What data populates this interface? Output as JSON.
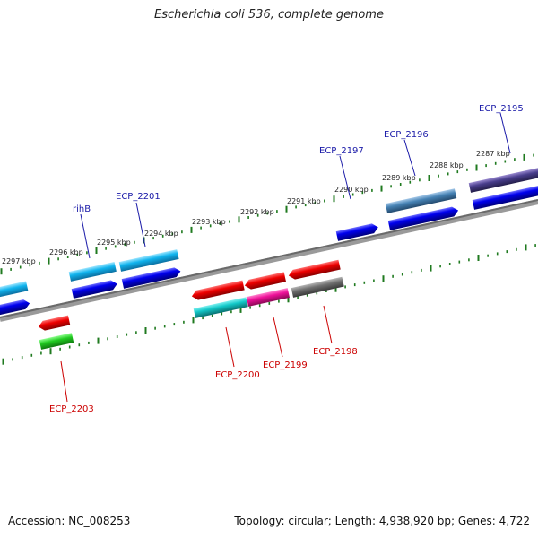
{
  "title": "Escherichia coli 536, complete genome",
  "footer": {
    "accession": "Accession: NC_008253",
    "summary": "Topology: circular; Length: 4,938,920 bp; Genes: 4,722"
  },
  "colors": {
    "backbone": "#7f7f7f",
    "ticks": "#1f7a1f",
    "forward_label": "#1a1aa8",
    "reverse_label": "#cc0000"
  },
  "scale_labels": [
    "2287 kbp",
    "2288 kbp",
    "2289 kbp",
    "2290 kbp",
    "2291 kbp",
    "2292 kbp",
    "2293 kbp",
    "2294 kbp",
    "2295 kbp",
    "2296 kbp",
    "2297 kbp"
  ],
  "forward_labels": [
    "ECP_2195",
    "ECP_2196",
    "ECP_2197",
    "ECP_2201",
    "rihB"
  ],
  "reverse_labels": [
    "ECP_2198",
    "ECP_2199",
    "ECP_2200",
    "ECP_2203"
  ]
}
